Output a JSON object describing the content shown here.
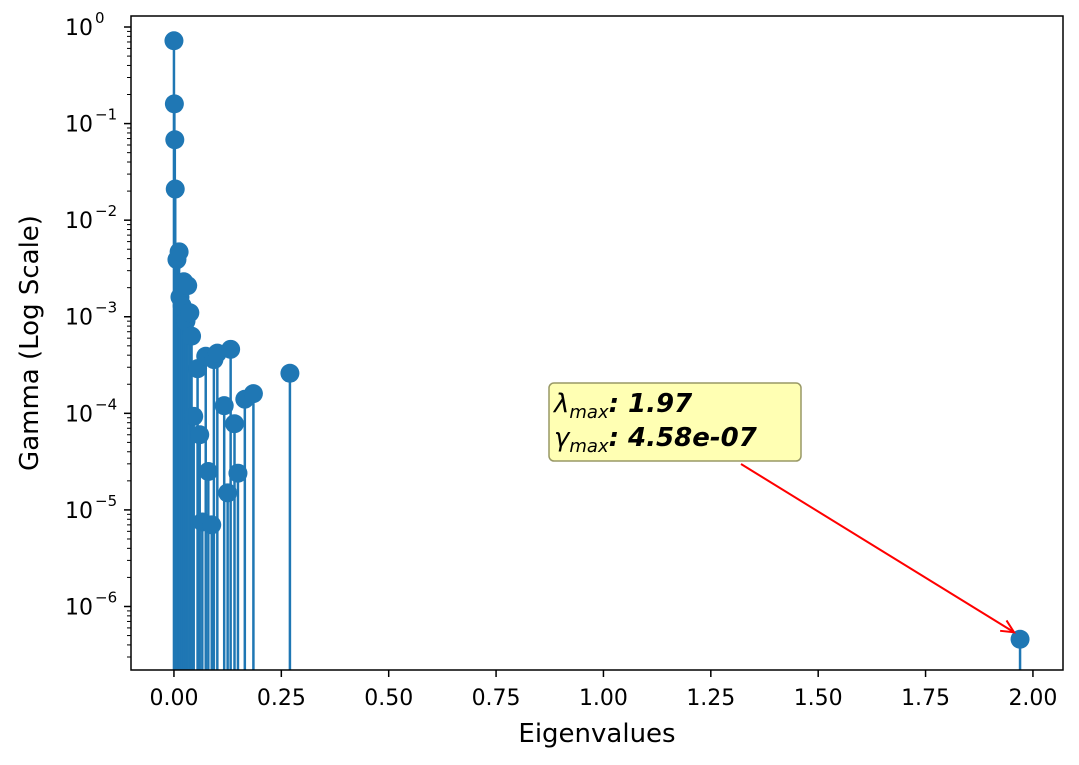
{
  "chart_data": {
    "type": "stem",
    "xlabel": "Eigenvalues",
    "ylabel": "Gamma (Log Scale)",
    "y_scale": "log",
    "xlim": [
      -0.1,
      2.07
    ],
    "ylim": [
      2.2e-07,
      1.3
    ],
    "x_ticks": [
      0.0,
      0.25,
      0.5,
      0.75,
      1.0,
      1.25,
      1.5,
      1.75,
      2.0
    ],
    "x_tick_labels": [
      "0.00",
      "0.25",
      "0.50",
      "0.75",
      "1.00",
      "1.25",
      "1.50",
      "1.75",
      "2.00"
    ],
    "y_ticks_exponents": [
      0,
      -1,
      -2,
      -3,
      -4,
      -5,
      -6
    ],
    "y_tick_base": "10",
    "grid": false,
    "color": "#1f77b4",
    "points": [
      {
        "x": 0.0,
        "y": 0.72
      },
      {
        "x": 0.001,
        "y": 0.16
      },
      {
        "x": 0.002,
        "y": 0.068
      },
      {
        "x": 0.003,
        "y": 0.021
      },
      {
        "x": 0.007,
        "y": 0.0039
      },
      {
        "x": 0.012,
        "y": 0.0047
      },
      {
        "x": 0.014,
        "y": 0.0016
      },
      {
        "x": 0.019,
        "y": 0.0013
      },
      {
        "x": 0.023,
        "y": 0.0023
      },
      {
        "x": 0.028,
        "y": 0.0009
      },
      {
        "x": 0.032,
        "y": 0.0021
      },
      {
        "x": 0.037,
        "y": 0.0011
      },
      {
        "x": 0.041,
        "y": 0.00063
      },
      {
        "x": 0.046,
        "y": 9.3e-05
      },
      {
        "x": 0.055,
        "y": 0.00029
      },
      {
        "x": 0.06,
        "y": 6e-05
      },
      {
        "x": 0.066,
        "y": 7.5e-06
      },
      {
        "x": 0.074,
        "y": 0.00039
      },
      {
        "x": 0.08,
        "y": 2.5e-05
      },
      {
        "x": 0.088,
        "y": 7e-06
      },
      {
        "x": 0.093,
        "y": 0.00036
      },
      {
        "x": 0.101,
        "y": 0.00042
      },
      {
        "x": 0.117,
        "y": 0.00012
      },
      {
        "x": 0.125,
        "y": 1.5e-05
      },
      {
        "x": 0.132,
        "y": 0.00046
      },
      {
        "x": 0.141,
        "y": 7.8e-05
      },
      {
        "x": 0.149,
        "y": 2.4e-05
      },
      {
        "x": 0.165,
        "y": 0.00014
      },
      {
        "x": 0.185,
        "y": 0.00016
      },
      {
        "x": 0.27,
        "y": 0.00026
      },
      {
        "x": 1.97,
        "y": 4.58e-07
      }
    ],
    "annotation": {
      "lambda_symbol": "λ",
      "lambda_sub": "max",
      "lambda_value": ": 1.97",
      "gamma_symbol": "γ",
      "gamma_sub": "max",
      "gamma_value": ": 4.58e-07",
      "target_x": 1.97,
      "target_y": 4.58e-07,
      "box_color": "#ffffb3",
      "arrow_color": "#ff0000"
    }
  }
}
